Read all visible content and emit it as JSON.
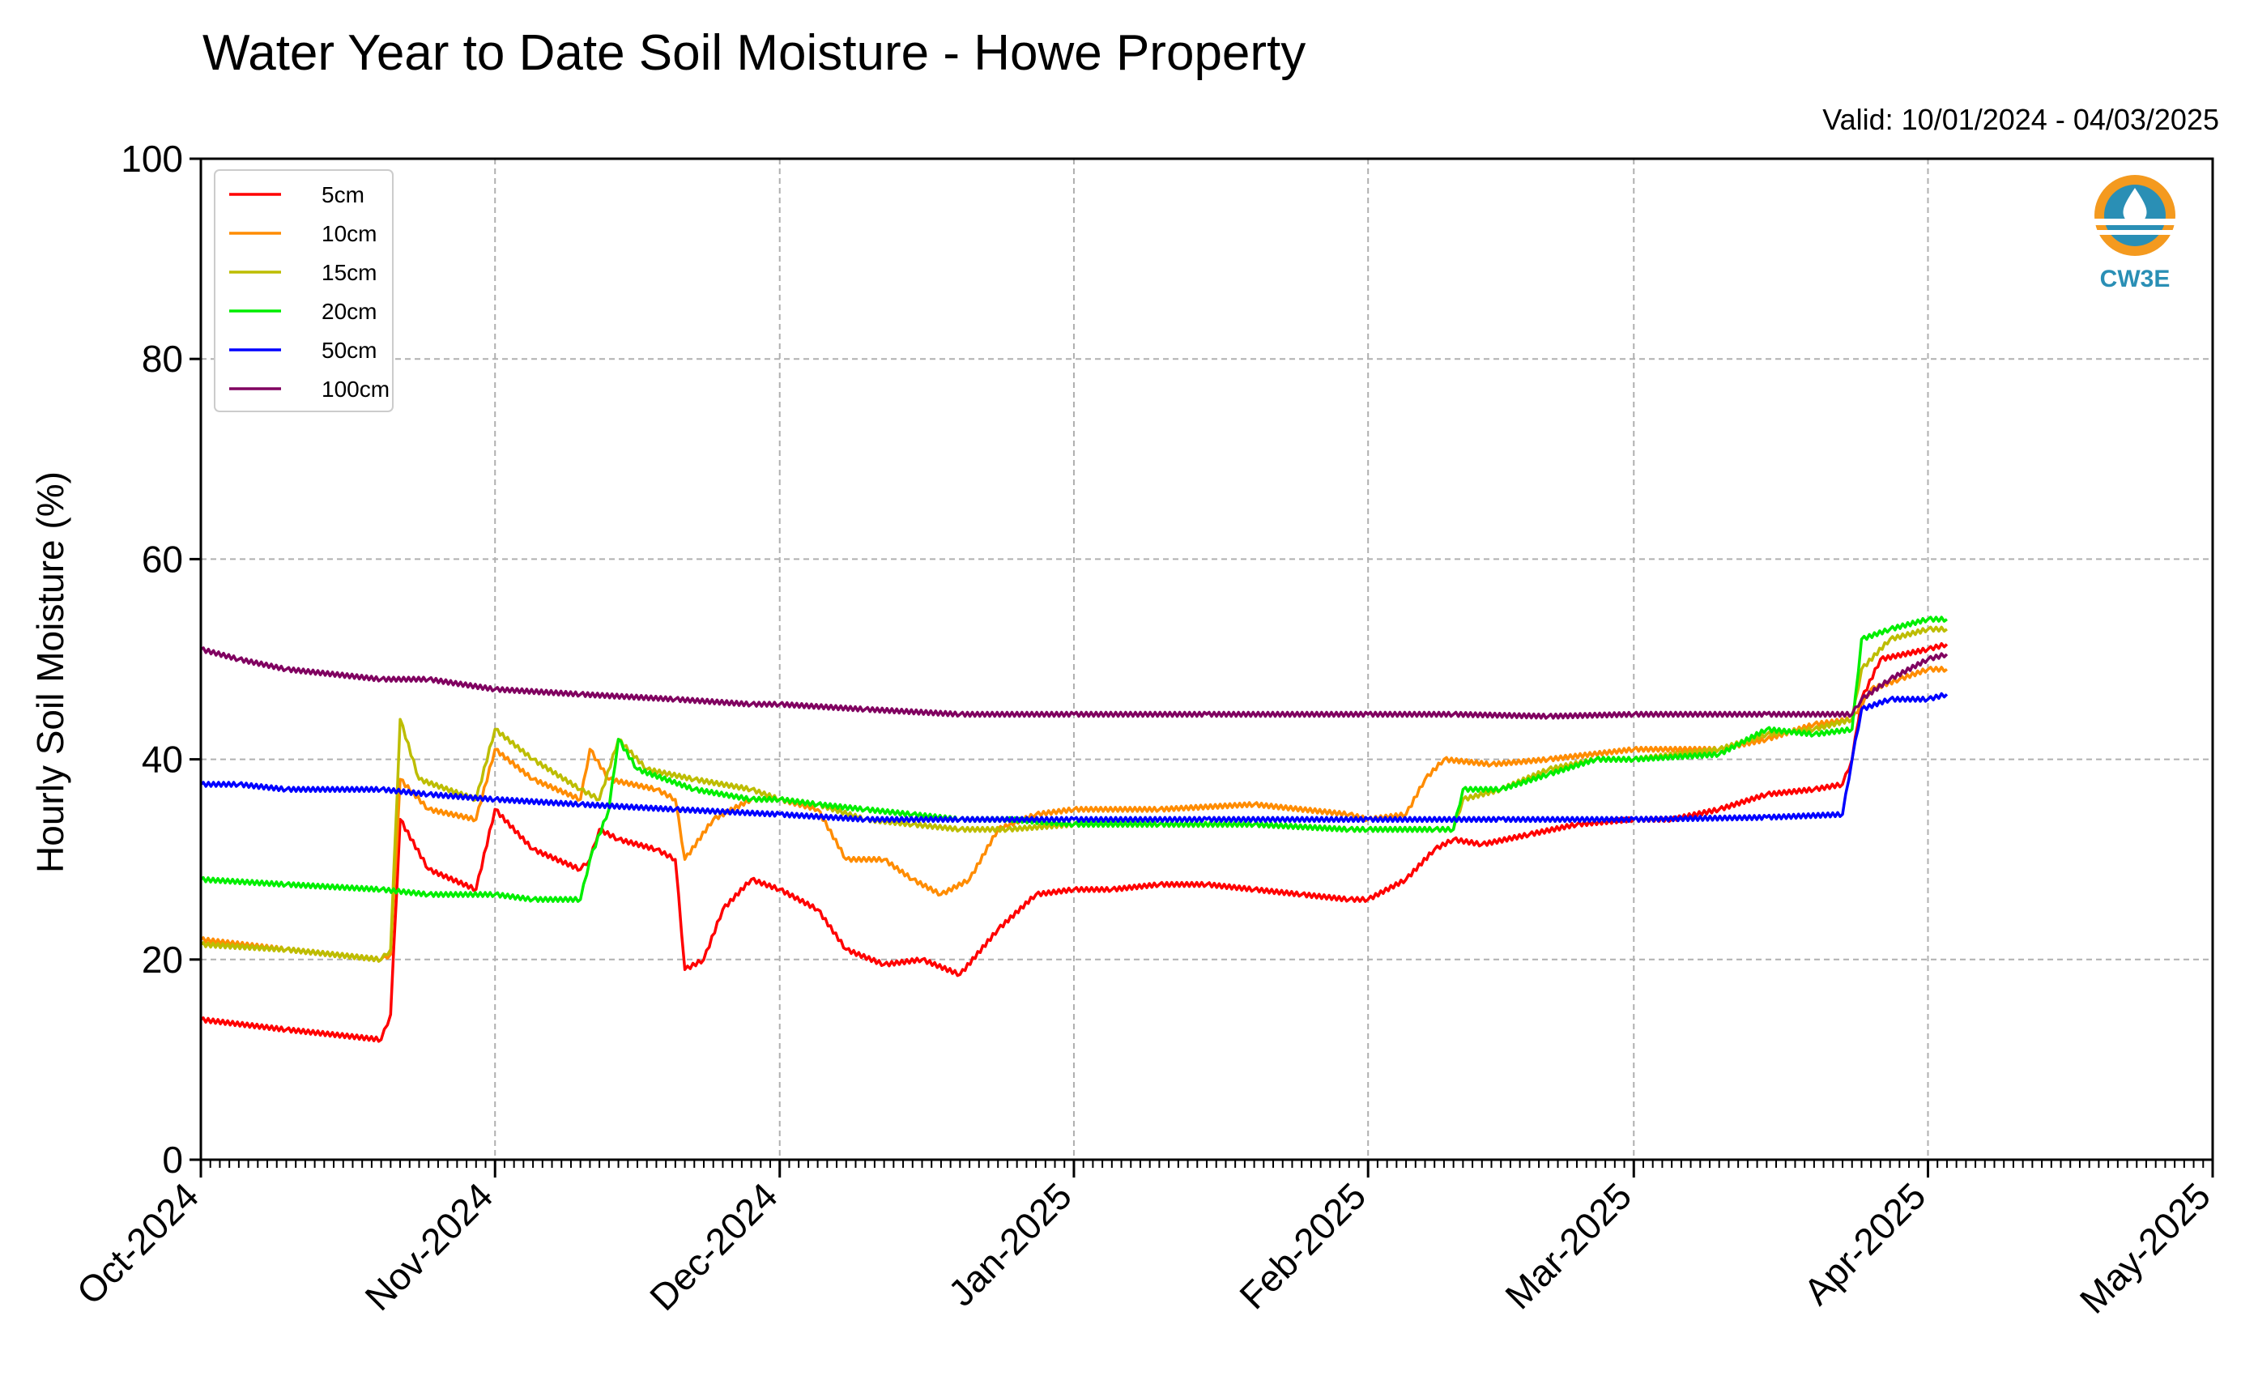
{
  "chart_data": {
    "type": "line",
    "title": "Water Year to Date Soil Moisture - Howe Property",
    "subtitle": "Valid: 10/01/2024 - 04/03/2025",
    "xlabel": "",
    "ylabel": "Hourly Soil Moisture (%)",
    "ylim": [
      0,
      100
    ],
    "yticks": [
      0,
      20,
      40,
      60,
      80,
      100
    ],
    "xlim": [
      "2024-10-01",
      "2025-05-01"
    ],
    "xticks": [
      {
        "date": "2024-10-01",
        "label": "Oct-2024"
      },
      {
        "date": "2024-11-01",
        "label": "Nov-2024"
      },
      {
        "date": "2024-12-01",
        "label": "Dec-2024"
      },
      {
        "date": "2025-01-01",
        "label": "Jan-2025"
      },
      {
        "date": "2025-02-01",
        "label": "Feb-2025"
      },
      {
        "date": "2025-03-01",
        "label": "Mar-2025"
      },
      {
        "date": "2025-04-01",
        "label": "Apr-2025"
      },
      {
        "date": "2025-05-01",
        "label": "May-2025"
      }
    ],
    "grid": true,
    "legend_position": "top-left",
    "series": [
      {
        "name": "5cm",
        "color": "#ff0000",
        "points": [
          [
            "2024-10-01",
            14
          ],
          [
            "2024-10-10",
            13
          ],
          [
            "2024-10-20",
            12
          ],
          [
            "2024-10-21",
            14.5
          ],
          [
            "2024-10-22",
            34
          ],
          [
            "2024-10-25",
            29
          ],
          [
            "2024-10-30",
            27
          ],
          [
            "2024-11-01",
            35
          ],
          [
            "2024-11-05",
            31
          ],
          [
            "2024-11-10",
            29
          ],
          [
            "2024-11-11",
            30
          ],
          [
            "2024-11-12",
            33
          ],
          [
            "2024-11-14",
            32
          ],
          [
            "2024-11-18",
            31
          ],
          [
            "2024-11-20",
            30
          ],
          [
            "2024-11-21",
            19
          ],
          [
            "2024-11-23",
            20
          ],
          [
            "2024-11-25",
            25
          ],
          [
            "2024-11-28",
            28
          ],
          [
            "2024-12-01",
            27
          ],
          [
            "2024-12-05",
            25
          ],
          [
            "2024-12-08",
            21
          ],
          [
            "2024-12-12",
            19.5
          ],
          [
            "2024-12-16",
            20
          ],
          [
            "2024-12-20",
            18.5
          ],
          [
            "2024-12-24",
            23
          ],
          [
            "2024-12-28",
            26.5
          ],
          [
            "2025-01-01",
            27
          ],
          [
            "2025-01-05",
            27
          ],
          [
            "2025-01-10",
            27.5
          ],
          [
            "2025-01-15",
            27.5
          ],
          [
            "2025-01-20",
            27
          ],
          [
            "2025-01-25",
            26.5
          ],
          [
            "2025-01-30",
            26
          ],
          [
            "2025-02-01",
            26
          ],
          [
            "2025-02-05",
            28
          ],
          [
            "2025-02-08",
            31
          ],
          [
            "2025-02-10",
            32
          ],
          [
            "2025-02-13",
            31.5
          ],
          [
            "2025-02-18",
            32.5
          ],
          [
            "2025-02-23",
            33.5
          ],
          [
            "2025-03-01",
            34
          ],
          [
            "2025-03-05",
            34
          ],
          [
            "2025-03-10",
            35
          ],
          [
            "2025-03-15",
            36.5
          ],
          [
            "2025-03-20",
            37
          ],
          [
            "2025-03-23",
            37.5
          ],
          [
            "2025-03-24",
            40
          ],
          [
            "2025-03-25",
            46
          ],
          [
            "2025-03-27",
            50
          ],
          [
            "2025-04-01",
            51
          ],
          [
            "2025-04-03",
            51.5
          ]
        ]
      },
      {
        "name": "10cm",
        "color": "#ff8c00",
        "points": [
          [
            "2024-10-01",
            22
          ],
          [
            "2024-10-10",
            21
          ],
          [
            "2024-10-20",
            20
          ],
          [
            "2024-10-21",
            20.5
          ],
          [
            "2024-10-22",
            38
          ],
          [
            "2024-10-25",
            35
          ],
          [
            "2024-10-30",
            34
          ],
          [
            "2024-11-01",
            41
          ],
          [
            "2024-11-05",
            38
          ],
          [
            "2024-11-10",
            36
          ],
          [
            "2024-11-11",
            41
          ],
          [
            "2024-11-13",
            38
          ],
          [
            "2024-11-18",
            37
          ],
          [
            "2024-11-20",
            36
          ],
          [
            "2024-11-21",
            30
          ],
          [
            "2024-11-24",
            34
          ],
          [
            "2024-11-28",
            36
          ],
          [
            "2024-12-01",
            36
          ],
          [
            "2024-12-05",
            35
          ],
          [
            "2024-12-08",
            30
          ],
          [
            "2024-12-12",
            30
          ],
          [
            "2024-12-15",
            28
          ],
          [
            "2024-12-18",
            26.5
          ],
          [
            "2024-12-21",
            28
          ],
          [
            "2024-12-24",
            33
          ],
          [
            "2024-12-28",
            34.5
          ],
          [
            "2025-01-01",
            35
          ],
          [
            "2025-01-10",
            35
          ],
          [
            "2025-01-20",
            35.5
          ],
          [
            "2025-01-30",
            34.5
          ],
          [
            "2025-02-01",
            34
          ],
          [
            "2025-02-05",
            34.5
          ],
          [
            "2025-02-07",
            38
          ],
          [
            "2025-02-09",
            40
          ],
          [
            "2025-02-14",
            39.5
          ],
          [
            "2025-02-20",
            40
          ],
          [
            "2025-03-01",
            41
          ],
          [
            "2025-03-10",
            41
          ],
          [
            "2025-03-15",
            42
          ],
          [
            "2025-03-20",
            43.5
          ],
          [
            "2025-03-24",
            44
          ],
          [
            "2025-03-26",
            47
          ],
          [
            "2025-03-29",
            48
          ],
          [
            "2025-04-01",
            49
          ],
          [
            "2025-04-03",
            49
          ]
        ]
      },
      {
        "name": "15cm",
        "color": "#bdbd00",
        "points": [
          [
            "2024-10-01",
            21.5
          ],
          [
            "2024-10-10",
            21
          ],
          [
            "2024-10-20",
            20
          ],
          [
            "2024-10-21",
            21
          ],
          [
            "2024-10-22",
            44
          ],
          [
            "2024-10-24",
            38
          ],
          [
            "2024-10-30",
            36
          ],
          [
            "2024-11-01",
            43
          ],
          [
            "2024-11-05",
            40
          ],
          [
            "2024-11-10",
            37
          ],
          [
            "2024-11-12",
            36
          ],
          [
            "2024-11-14",
            42
          ],
          [
            "2024-11-17",
            39
          ],
          [
            "2024-11-22",
            38
          ],
          [
            "2024-11-28",
            37
          ],
          [
            "2024-12-01",
            36
          ],
          [
            "2024-12-05",
            35.5
          ],
          [
            "2024-12-10",
            34
          ],
          [
            "2024-12-15",
            33.5
          ],
          [
            "2024-12-20",
            33
          ],
          [
            "2024-12-25",
            33
          ],
          [
            "2025-01-01",
            33.5
          ],
          [
            "2025-01-10",
            33.5
          ],
          [
            "2025-01-20",
            33.5
          ],
          [
            "2025-01-30",
            33
          ],
          [
            "2025-02-01",
            33
          ],
          [
            "2025-02-08",
            33
          ],
          [
            "2025-02-10",
            33
          ],
          [
            "2025-02-11",
            36
          ],
          [
            "2025-02-15",
            37
          ],
          [
            "2025-02-20",
            39
          ],
          [
            "2025-02-25",
            40
          ],
          [
            "2025-03-01",
            40
          ],
          [
            "2025-03-10",
            41
          ],
          [
            "2025-03-15",
            42.5
          ],
          [
            "2025-03-20",
            43
          ],
          [
            "2025-03-24",
            44
          ],
          [
            "2025-03-25",
            49
          ],
          [
            "2025-03-28",
            52
          ],
          [
            "2025-04-01",
            53
          ],
          [
            "2025-04-03",
            53
          ]
        ]
      },
      {
        "name": "20cm",
        "color": "#00ee00",
        "points": [
          [
            "2024-10-01",
            28
          ],
          [
            "2024-10-10",
            27.5
          ],
          [
            "2024-10-20",
            27
          ],
          [
            "2024-10-25",
            26.5
          ],
          [
            "2024-11-01",
            26.5
          ],
          [
            "2024-11-05",
            26
          ],
          [
            "2024-11-10",
            26
          ],
          [
            "2024-11-11",
            30
          ],
          [
            "2024-11-13",
            35
          ],
          [
            "2024-11-14",
            42
          ],
          [
            "2024-11-16",
            39
          ],
          [
            "2024-11-22",
            37
          ],
          [
            "2024-11-28",
            36
          ],
          [
            "2024-12-01",
            36
          ],
          [
            "2024-12-05",
            35.5
          ],
          [
            "2024-12-10",
            35
          ],
          [
            "2024-12-15",
            34.5
          ],
          [
            "2024-12-20",
            34
          ],
          [
            "2024-12-25",
            34
          ],
          [
            "2025-01-01",
            33.5
          ],
          [
            "2025-01-10",
            33.5
          ],
          [
            "2025-01-20",
            33.5
          ],
          [
            "2025-01-30",
            33
          ],
          [
            "2025-02-01",
            33
          ],
          [
            "2025-02-08",
            33
          ],
          [
            "2025-02-10",
            33
          ],
          [
            "2025-02-11",
            37
          ],
          [
            "2025-02-15",
            37
          ],
          [
            "2025-02-20",
            38.5
          ],
          [
            "2025-02-25",
            40
          ],
          [
            "2025-03-01",
            40
          ],
          [
            "2025-03-10",
            40.5
          ],
          [
            "2025-03-15",
            43
          ],
          [
            "2025-03-20",
            42.5
          ],
          [
            "2025-03-24",
            43
          ],
          [
            "2025-03-25",
            52
          ],
          [
            "2025-03-28",
            53
          ],
          [
            "2025-04-01",
            54
          ],
          [
            "2025-04-03",
            54
          ]
        ]
      },
      {
        "name": "50cm",
        "color": "#0000ff",
        "points": [
          [
            "2024-10-01",
            37.5
          ],
          [
            "2024-10-05",
            37.5
          ],
          [
            "2024-10-10",
            37
          ],
          [
            "2024-10-20",
            37
          ],
          [
            "2024-10-25",
            36.5
          ],
          [
            "2024-11-01",
            36
          ],
          [
            "2024-11-10",
            35.5
          ],
          [
            "2024-11-20",
            35
          ],
          [
            "2024-12-01",
            34.5
          ],
          [
            "2024-12-10",
            34
          ],
          [
            "2024-12-20",
            34
          ],
          [
            "2025-01-01",
            34
          ],
          [
            "2025-01-15",
            34
          ],
          [
            "2025-02-01",
            34
          ],
          [
            "2025-02-15",
            34
          ],
          [
            "2025-03-01",
            34
          ],
          [
            "2025-03-15",
            34.2
          ],
          [
            "2025-03-23",
            34.5
          ],
          [
            "2025-03-24",
            40
          ],
          [
            "2025-03-25",
            45
          ],
          [
            "2025-03-28",
            46
          ],
          [
            "2025-04-01",
            46
          ],
          [
            "2025-04-03",
            46.5
          ]
        ]
      },
      {
        "name": "100cm",
        "color": "#800060",
        "points": [
          [
            "2024-10-01",
            51
          ],
          [
            "2024-10-05",
            50
          ],
          [
            "2024-10-10",
            49
          ],
          [
            "2024-10-20",
            48
          ],
          [
            "2024-10-25",
            48
          ],
          [
            "2024-11-01",
            47
          ],
          [
            "2024-11-10",
            46.5
          ],
          [
            "2024-11-20",
            46
          ],
          [
            "2024-11-28",
            45.5
          ],
          [
            "2024-12-01",
            45.5
          ],
          [
            "2024-12-10",
            45
          ],
          [
            "2024-12-20",
            44.5
          ],
          [
            "2025-01-01",
            44.5
          ],
          [
            "2025-01-15",
            44.5
          ],
          [
            "2025-02-01",
            44.5
          ],
          [
            "2025-02-10",
            44.5
          ],
          [
            "2025-02-20",
            44.3
          ],
          [
            "2025-03-01",
            44.5
          ],
          [
            "2025-03-15",
            44.5
          ],
          [
            "2025-03-24",
            44.5
          ],
          [
            "2025-03-25",
            46
          ],
          [
            "2025-03-28",
            48
          ],
          [
            "2025-04-01",
            50
          ],
          [
            "2025-04-03",
            50.5
          ]
        ]
      }
    ]
  },
  "logo": {
    "text": "CW3E"
  }
}
